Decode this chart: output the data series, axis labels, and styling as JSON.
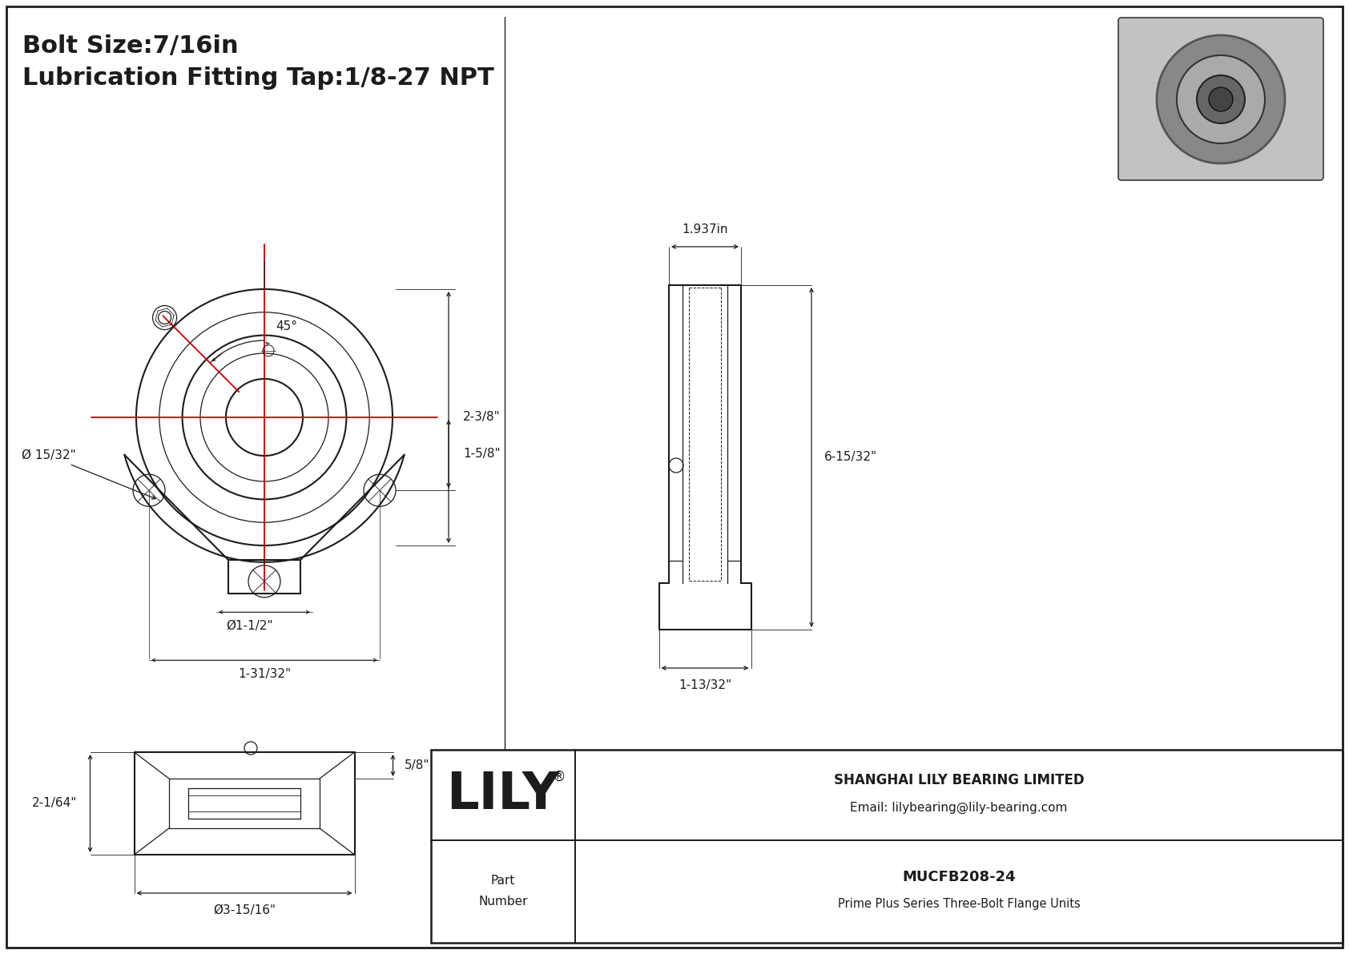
{
  "bg_color": "#ffffff",
  "line_color": "#1c1c1c",
  "red_color": "#cc0000",
  "title_line1": "Bolt Size:7/16in",
  "title_line2": "Lubrication Fitting Tap:1/8-27 NPT",
  "title_fontsize": 22,
  "dim_fontsize": 11,
  "company_name": "SHANGHAI LILY BEARING LIMITED",
  "company_email": "Email: lilybearing@lily-bearing.com",
  "part_number": "MUCFB208-24",
  "part_series": "Prime Plus Series Three-Bolt Flange Units",
  "lily_text": "LILY",
  "lily_registered": "®",
  "angle_label": "45°",
  "dim_2_3_8": "2-3/8\"",
  "dim_1_5_8": "1-5/8\"",
  "dim_15_32": "Ø 15/32\"",
  "dim_1_1_2": "Ø1-1/2\"",
  "dim_1_31_32": "1-31/32\"",
  "dim_1_937": "1.937in",
  "dim_6_15_32": "6-15/32\"",
  "dim_1_13_32": "1-13/32\"",
  "dim_5_8": "5/8\"",
  "dim_2_1_64": "2-1/64\"",
  "dim_3_15_16": "Ø3-15/16\""
}
